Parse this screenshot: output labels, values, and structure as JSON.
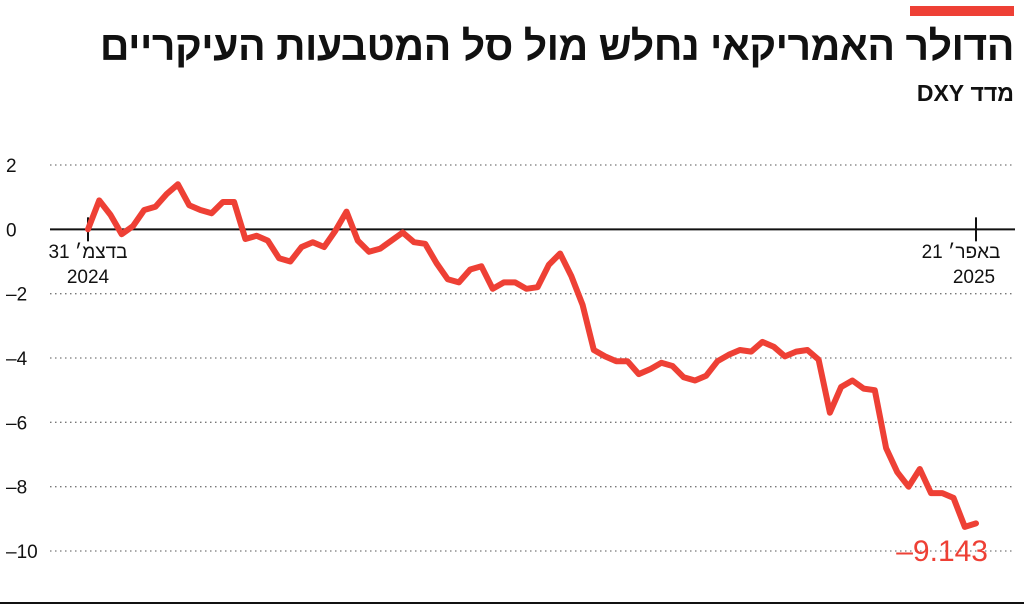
{
  "header": {
    "title": "הדולר האמריקאי נחלש מול סל המטבעות העיקריים",
    "subtitle": "מדד DXY"
  },
  "colors": {
    "accent": "#EE4035",
    "text": "#111111",
    "grid": "#777777"
  },
  "chart_data": {
    "type": "line",
    "title": "הדולר האמריקאי נחלש מול סל המטבעות העיקריים",
    "subtitle": "מדד DXY",
    "xlabel": "",
    "ylabel": "",
    "ylim": [
      -10,
      2
    ],
    "yticks": [
      2,
      0,
      -2,
      -4,
      -6,
      -8,
      -10
    ],
    "ytick_labels": [
      "2",
      "0",
      "–2",
      "–4",
      "–6",
      "–8",
      "–10"
    ],
    "grid": true,
    "start_label": {
      "line1": "31 בדצמ׳",
      "line2": "2024"
    },
    "end_label": {
      "line1": "21 באפר׳",
      "line2": "2025"
    },
    "last_value_label": "–9.143",
    "series": [
      {
        "values": [
          0,
          0.9,
          0.45,
          -0.15,
          0.1,
          0.6,
          0.7,
          1.1,
          1.4,
          0.75,
          0.6,
          0.5,
          0.85,
          0.85,
          -0.3,
          -0.2,
          -0.35,
          -0.9,
          -1.0,
          -0.55,
          -0.4,
          -0.55,
          -0.05,
          0.55,
          -0.35,
          -0.7,
          -0.6,
          -0.35,
          -0.1,
          -0.4,
          -0.45,
          -1.05,
          -1.55,
          -1.65,
          -1.25,
          -1.15,
          -1.85,
          -1.65,
          -1.65,
          -1.85,
          -1.8,
          -1.1,
          -0.75,
          -1.45,
          -2.35,
          -3.75,
          -3.95,
          -4.1,
          -4.1,
          -4.5,
          -4.35,
          -4.15,
          -4.25,
          -4.6,
          -4.7,
          -4.55,
          -4.1,
          -3.9,
          -3.75,
          -3.8,
          -3.5,
          -3.65,
          -3.95,
          -3.8,
          -3.75,
          -4.05,
          -5.7,
          -4.9,
          -4.7,
          -4.95,
          -5.0,
          -6.8,
          -7.55,
          -8.0,
          -7.45,
          -8.2,
          -8.2,
          -8.35,
          -9.25,
          -9.143
        ]
      }
    ]
  }
}
